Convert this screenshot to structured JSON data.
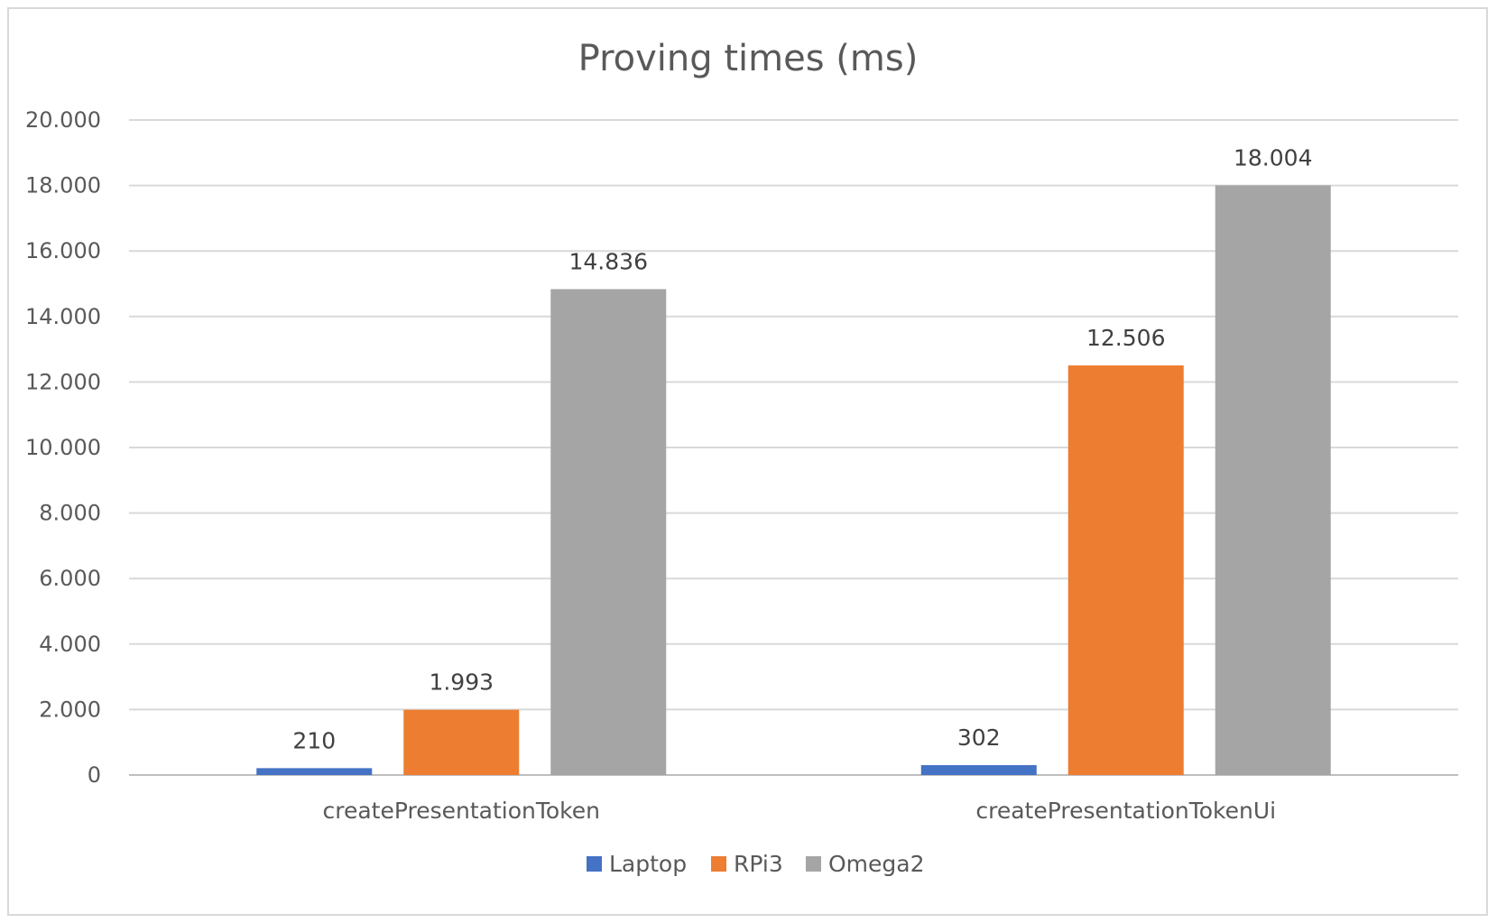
{
  "chart_data": {
    "type": "bar",
    "title": "Proving times (ms)",
    "xlabel": "",
    "ylabel": "",
    "categories": [
      "createPresentationToken",
      "createPresentationTokenUi"
    ],
    "series": [
      {
        "name": "Laptop",
        "values": [
          210,
          302
        ],
        "labels": [
          "210",
          "302"
        ],
        "color": "#4472c4"
      },
      {
        "name": "RPi3",
        "values": [
          1993,
          12506
        ],
        "labels": [
          "1.993",
          "12.506"
        ],
        "color": "#ed7d31"
      },
      {
        "name": "Omega2",
        "values": [
          14836,
          18004
        ],
        "labels": [
          "14.836",
          "18.004"
        ],
        "color": "#a5a5a5"
      }
    ],
    "ylim": [
      0,
      20000
    ],
    "yticks": [
      0,
      2000,
      4000,
      6000,
      8000,
      10000,
      12000,
      14000,
      16000,
      18000,
      20000
    ],
    "ytick_labels": [
      "0",
      "2.000",
      "4.000",
      "6.000",
      "8.000",
      "10.000",
      "12.000",
      "14.000",
      "16.000",
      "18.000",
      "20.000"
    ],
    "grid": true,
    "legend_position": "bottom"
  }
}
